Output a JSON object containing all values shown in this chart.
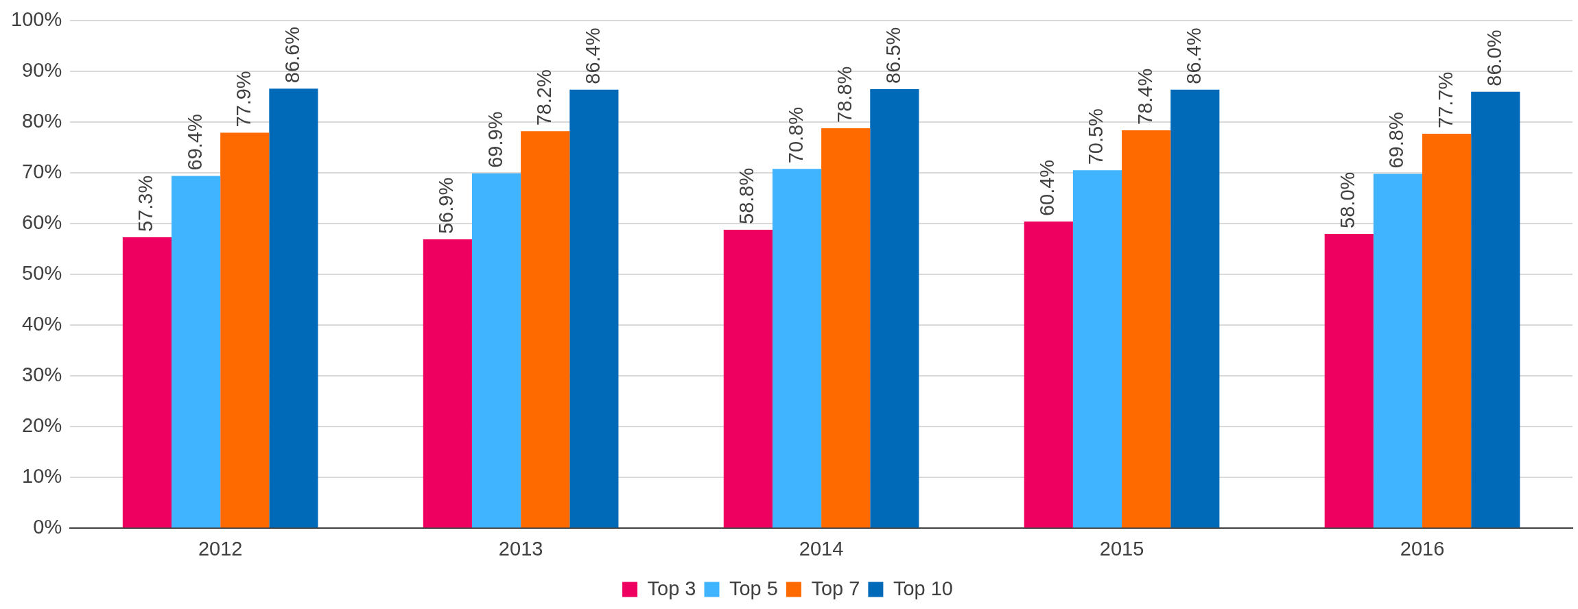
{
  "chart_data": {
    "type": "bar",
    "categories": [
      "2012",
      "2013",
      "2014",
      "2015",
      "2016"
    ],
    "series": [
      {
        "name": "Top 3",
        "color": "#ee0060",
        "values": [
          57.3,
          56.9,
          58.8,
          60.4,
          58.0
        ],
        "value_labels": [
          "57.3%",
          "56.9%",
          "58.8%",
          "60.4%",
          "58.0%"
        ]
      },
      {
        "name": "Top 5",
        "color": "#40b4ff",
        "values": [
          69.4,
          69.9,
          70.8,
          70.5,
          69.8
        ],
        "value_labels": [
          "69.4%",
          "69.9%",
          "70.8%",
          "70.5%",
          "69.8%"
        ]
      },
      {
        "name": "Top 7",
        "color": "#ff6a00",
        "values": [
          77.9,
          78.2,
          78.8,
          78.4,
          77.7
        ],
        "value_labels": [
          "77.9%",
          "78.2%",
          "78.8%",
          "78.4%",
          "77.7%"
        ]
      },
      {
        "name": "Top 10",
        "color": "#0069b8",
        "values": [
          86.6,
          86.4,
          86.5,
          86.4,
          86.0
        ],
        "value_labels": [
          "86.6%",
          "86.4%",
          "86.5%",
          "86.4%",
          "86.0%"
        ]
      }
    ],
    "ylim": [
      0,
      100
    ],
    "yticks": [
      {
        "value": 0,
        "label": "0%"
      },
      {
        "value": 10,
        "label": "10%"
      },
      {
        "value": 20,
        "label": "20%"
      },
      {
        "value": 30,
        "label": "30%"
      },
      {
        "value": 40,
        "label": "40%"
      },
      {
        "value": 50,
        "label": "50%"
      },
      {
        "value": 60,
        "label": "60%"
      },
      {
        "value": 70,
        "label": "70%"
      },
      {
        "value": 80,
        "label": "80%"
      },
      {
        "value": 90,
        "label": "90%"
      },
      {
        "value": 100,
        "label": "100%"
      }
    ],
    "grid": "y",
    "legend": "bottom"
  }
}
